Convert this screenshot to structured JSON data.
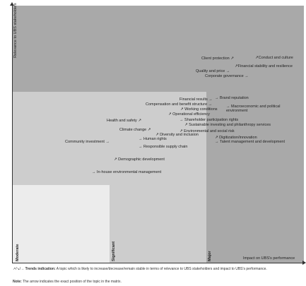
{
  "axes": {
    "y_title": "Relevance to UBS stakeholders",
    "x_title": "Impact on UBS's performance",
    "levels": [
      "Moderate",
      "Significant",
      "Major"
    ]
  },
  "colors": {
    "zone_major": "#a9a9a9",
    "zone_significant": "#cdcdcd",
    "zone_moderate": "#ececec",
    "axis": "#333333"
  },
  "topics": [
    {
      "label": "Client protection",
      "arrow": "↗"
    },
    {
      "label": "Conduct and culture",
      "arrow": "↗"
    },
    {
      "label": "Financial stability and resilience",
      "arrow": "↗"
    },
    {
      "label": "Quality and price",
      "arrow": "→"
    },
    {
      "label": "Corporate governance",
      "arrow": "→"
    },
    {
      "label": "Financial results",
      "arrow": "→"
    },
    {
      "label": "Brand reputation",
      "arrow": "→"
    },
    {
      "label": "Compensation and benefit structure",
      "arrow": "→"
    },
    {
      "label": "Macroeconomic and political environment",
      "arrow": "→"
    },
    {
      "label": "Working conditions",
      "arrow": "↗"
    },
    {
      "label": "Operational efficiency",
      "arrow": "↗"
    },
    {
      "label": "Health and safety",
      "arrow": "↗"
    },
    {
      "label": "Shareholder participation rights",
      "arrow": "→"
    },
    {
      "label": "Sustainable investing and philanthropy services",
      "arrow": "↗"
    },
    {
      "label": "Climate change",
      "arrow": "↗"
    },
    {
      "label": "Environmental and social risk",
      "arrow": "↗"
    },
    {
      "label": "Diversity and inclusion",
      "arrow": "↗"
    },
    {
      "label": "Human rights",
      "arrow": "→"
    },
    {
      "label": "Digitization/innovation",
      "arrow": "↗"
    },
    {
      "label": "Talent management and development",
      "arrow": "→"
    },
    {
      "label": "Community investment",
      "arrow": "→"
    },
    {
      "label": "Responsible supply chain",
      "arrow": "→"
    },
    {
      "label": "Demographic development",
      "arrow": "↗"
    },
    {
      "label": "In-house environmental management",
      "arrow": "→"
    }
  ],
  "notes": {
    "trend_symbols": "↗/↘/→",
    "trend_label": "Trends indication:",
    "trend_text": "A topic which is likely to increase/decrease/remain stable in terms of relevance to UBS stakeholders and impact to UBS's performance.",
    "note_label": "Note:",
    "note_text": "The arrow indicates the exact position of the topic in the matrix."
  }
}
